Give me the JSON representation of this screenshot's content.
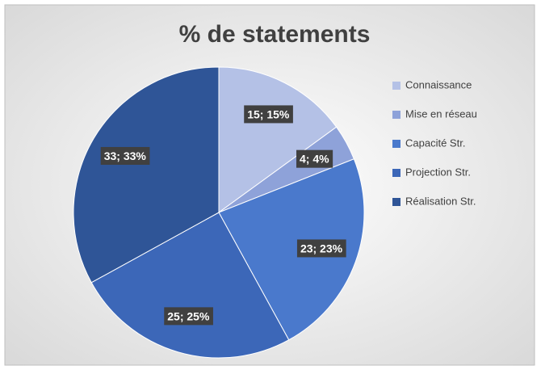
{
  "chart_data": {
    "type": "pie",
    "title": "% de statements",
    "categories": [
      "Connaissance",
      "Mise en réseau",
      "Capacité Str.",
      "Projection Str.",
      "Réalisation Str."
    ],
    "values": [
      15,
      4,
      23,
      25,
      33
    ],
    "value_labels": [
      "15; 15%",
      "4; 4%",
      "23; 23%",
      "25; 25%",
      "33; 33%"
    ],
    "colors": [
      "#b4c1e6",
      "#8ea2d9",
      "#4a79cc",
      "#3c67b8",
      "#2f5597"
    ],
    "legend": "right"
  }
}
